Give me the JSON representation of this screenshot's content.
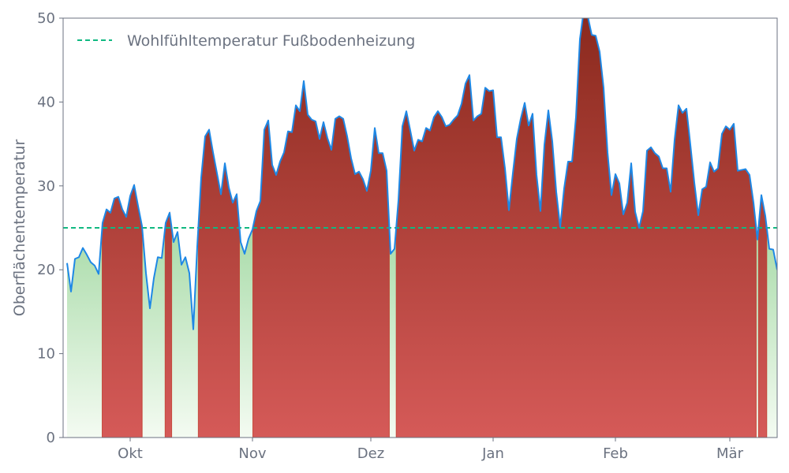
{
  "chart_data": {
    "type": "area",
    "title": "",
    "xlabel": "",
    "ylabel": "Oberflächentemperatur",
    "ylim": [
      0,
      50
    ],
    "yticks": [
      0,
      10,
      20,
      30,
      40,
      50
    ],
    "xlim": [
      "2023-09-14",
      "2024-03-13"
    ],
    "xticks": [
      {
        "date": "2023-10-01",
        "label": "Okt"
      },
      {
        "date": "2023-11-01",
        "label": "Nov"
      },
      {
        "date": "2023-12-01",
        "label": "Dez"
      },
      {
        "date": "2024-01-01",
        "label": "Jan"
      },
      {
        "date": "2024-02-01",
        "label": "Feb"
      },
      {
        "date": "2024-03-01",
        "label": "Mär"
      }
    ],
    "grid": false,
    "legend_position": "top-left",
    "reference_line": {
      "name": "Wohlfühltemperatur Fußbodenheizung",
      "value": 25,
      "color": "#10b981"
    },
    "series": [
      {
        "line_color": "#1e88e5",
        "above_fill_top": "#8b2a1e",
        "above_fill_bottom": "#d55a58",
        "below_fill_top": "#a8dba8",
        "below_fill_bottom": "#f4fbf2",
        "start": "2023-09-15",
        "step_days": 1,
        "values": [
          20.8,
          17.4,
          21.3,
          21.5,
          22.6,
          21.8,
          20.9,
          20.5,
          19.5,
          25.6,
          27.2,
          26.8,
          28.5,
          28.7,
          27.2,
          26.3,
          28.8,
          30.1,
          27.6,
          25.2,
          19.6,
          15.4,
          19.0,
          21.5,
          21.4,
          25.6,
          26.8,
          23.3,
          24.5,
          20.6,
          21.5,
          19.6,
          12.9,
          22.8,
          31.0,
          35.9,
          36.7,
          34.0,
          31.5,
          29.0,
          32.7,
          29.8,
          28.0,
          29.0,
          23.3,
          21.9,
          23.7,
          24.8,
          27.0,
          28.2,
          36.7,
          37.8,
          32.5,
          31.3,
          32.9,
          34.0,
          36.5,
          36.4,
          39.6,
          38.9,
          42.5,
          38.5,
          37.9,
          37.7,
          35.6,
          37.6,
          35.7,
          34.3,
          38.0,
          38.3,
          38.0,
          35.9,
          33.3,
          31.4,
          31.7,
          30.8,
          29.4,
          31.8,
          36.9,
          33.9,
          33.9,
          31.8,
          21.9,
          22.5,
          28.3,
          37.1,
          38.9,
          36.6,
          34.2,
          35.5,
          35.3,
          36.9,
          36.6,
          38.2,
          38.9,
          38.2,
          37.1,
          37.3,
          37.9,
          38.4,
          39.8,
          42.2,
          43.2,
          37.8,
          38.3,
          38.6,
          41.7,
          41.3,
          41.4,
          35.8,
          35.8,
          32.1,
          27.1,
          31.5,
          35.6,
          38.0,
          39.9,
          37.2,
          38.6,
          31.3,
          27.0,
          34.9,
          39.0,
          35.3,
          29.3,
          25.1,
          29.7,
          32.9,
          32.9,
          38.2,
          47.5,
          51.0,
          50.2,
          48.0,
          47.9,
          46.0,
          41.7,
          34.0,
          28.9,
          31.4,
          30.3,
          26.6,
          28.0,
          32.7,
          26.9,
          25.0,
          27.0,
          34.2,
          34.6,
          33.9,
          33.5,
          32.1,
          32.1,
          29.3,
          35.5,
          39.6,
          38.7,
          39.2,
          34.9,
          30.4,
          26.5,
          29.6,
          29.9,
          32.8,
          31.7,
          32.1,
          36.2,
          37.1,
          36.7,
          37.4,
          31.8,
          31.9,
          32.0,
          31.3,
          28.0,
          23.6,
          28.9,
          26.4,
          22.5,
          22.4,
          20.0
        ]
      }
    ]
  }
}
